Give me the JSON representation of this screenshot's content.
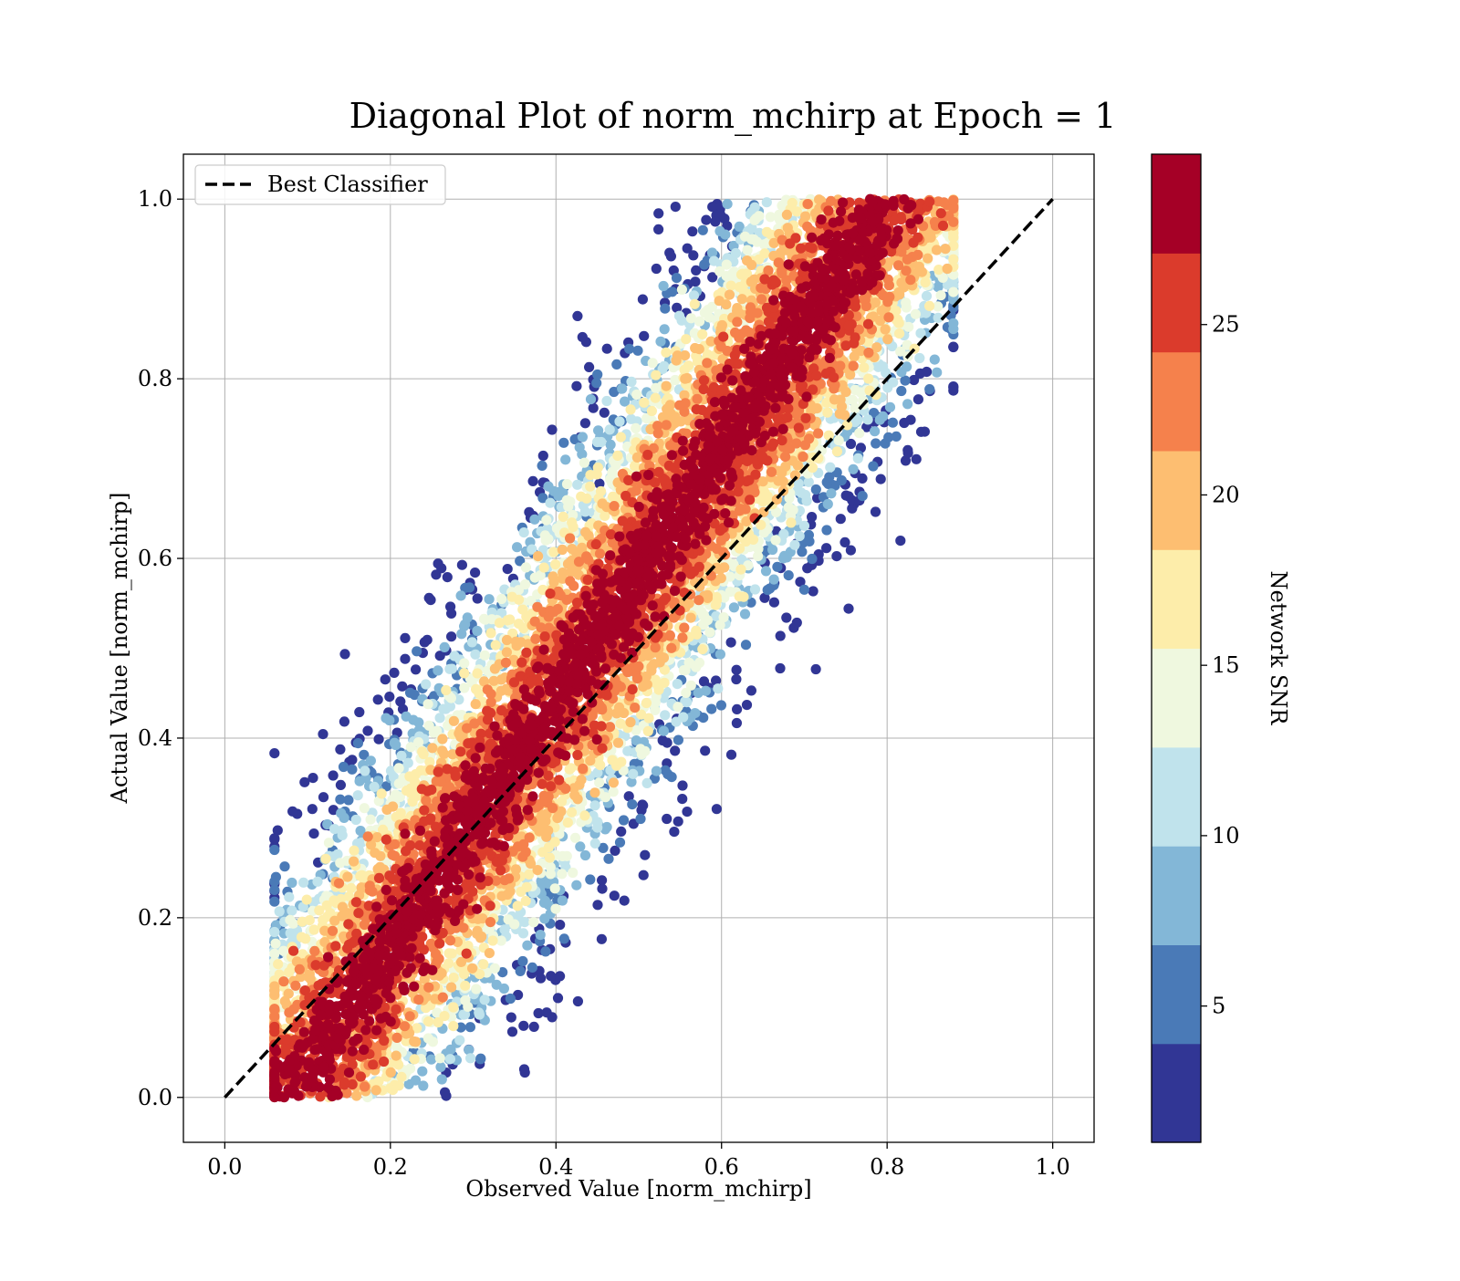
{
  "chart_data": {
    "type": "scatter",
    "title": "Diagonal Plot of norm_mchirp at Epoch = 1",
    "xlabel": "Observed Value [norm_mchirp]",
    "ylabel": "Actual Value [norm_mchirp]",
    "xlim": [
      -0.05,
      1.05
    ],
    "ylim": [
      -0.05,
      1.05
    ],
    "xticks": [
      0.0,
      0.2,
      0.4,
      0.6,
      0.8,
      1.0
    ],
    "yticks": [
      0.0,
      0.2,
      0.4,
      0.6,
      0.8,
      1.0
    ],
    "xtick_labels": [
      "0.0",
      "0.2",
      "0.4",
      "0.6",
      "0.8",
      "1.0"
    ],
    "ytick_labels": [
      "0.0",
      "0.2",
      "0.4",
      "0.6",
      "0.8",
      "1.0"
    ],
    "grid": true,
    "legend": {
      "position": "upper-left",
      "entries": [
        {
          "label": "Best Classifier",
          "style": "dashed",
          "color": "#000000"
        }
      ]
    },
    "reference_line": {
      "name": "Best Classifier",
      "x": [
        0.0,
        1.0
      ],
      "y": [
        0.0,
        1.0
      ]
    },
    "colorbar": {
      "label": "Network SNR",
      "range": [
        1,
        30
      ],
      "ticks": [
        5,
        10,
        15,
        20,
        25
      ],
      "tick_labels": [
        "5",
        "10",
        "15",
        "20",
        "25"
      ],
      "colors": [
        "#313695",
        "#4575b4",
        "#74add1",
        "#abd9e9",
        "#e0f3f8",
        "#ffffbf",
        "#fee090",
        "#fdae61",
        "#f46d43",
        "#d73027",
        "#a50026"
      ],
      "band_colors": [
        "#313695",
        "#4a7ab7",
        "#83b7d7",
        "#c0e3ec",
        "#eff8df",
        "#fdedaa",
        "#fdbe71",
        "#f5814c",
        "#db3b2c",
        "#a50026"
      ]
    },
    "scatter_model": {
      "description": "dense cloud of predictions vs actual values, colored by network SNR",
      "x_range": [
        0.06,
        0.88
      ],
      "y_range": [
        0.0,
        1.0
      ],
      "n_points": 9000,
      "seed": 7
    }
  }
}
